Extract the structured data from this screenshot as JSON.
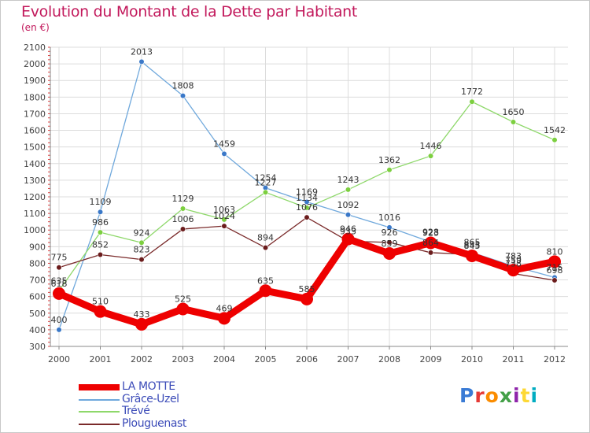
{
  "title": "Evolution du Montant de la Dette par Habitant",
  "subtitle": "(en €)",
  "logo": {
    "text": "Proxiti",
    "letter_colors": [
      "#3a7bd5",
      "#e53935",
      "#fb8c00",
      "#43a047",
      "#8e24aa",
      "#fdd835",
      "#00acc1"
    ]
  },
  "chart_data": {
    "type": "line",
    "x": [
      "2000",
      "2001",
      "2002",
      "2003",
      "2004",
      "2005",
      "2006",
      "2007",
      "2008",
      "2009",
      "2010",
      "2011",
      "2012"
    ],
    "ylim": [
      300,
      2100
    ],
    "yticks": [
      300,
      400,
      500,
      600,
      700,
      800,
      900,
      1000,
      1100,
      1200,
      1300,
      1400,
      1500,
      1600,
      1700,
      1800,
      1900,
      2000,
      2100
    ],
    "grid": true,
    "legend_position": "bottom-left",
    "series": [
      {
        "name": "LA MOTTE",
        "color": "#ee0000",
        "values": [
          618,
          510,
          433,
          525,
          469,
          635,
          585,
          946,
          859,
          923,
          845,
          759,
          810
        ]
      },
      {
        "name": "Grâce-Uzel",
        "color": "#6fa8dc",
        "values": [
          400,
          1109,
          2013,
          1808,
          1459,
          1254,
          1169,
          1092,
          1016,
          928,
          865,
          783,
          715
        ]
      },
      {
        "name": "Trévé",
        "color": "#8ed86a",
        "values": [
          635,
          986,
          924,
          1129,
          1063,
          1227,
          1134,
          1243,
          1362,
          1446,
          1772,
          1650,
          1542
        ]
      },
      {
        "name": "Plouguenast",
        "color": "#7a2a2a",
        "values": [
          775,
          852,
          823,
          1006,
          1024,
          894,
          1076,
          933,
          926,
          864,
          853,
          738,
          698
        ]
      }
    ]
  }
}
